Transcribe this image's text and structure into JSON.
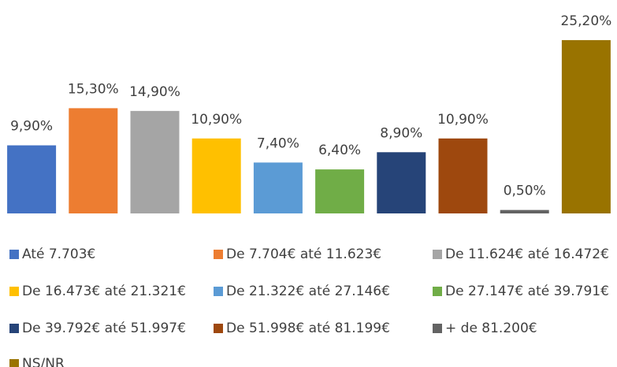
{
  "chart_data": {
    "type": "bar",
    "legend": "bottom",
    "ylim": [
      0,
      30
    ],
    "series": [
      {
        "name": "Até 7.703€",
        "color": "#4472c4",
        "values": [
          9.9
        ],
        "value_labels": [
          "9,90%"
        ]
      },
      {
        "name": "De 7.704€ até 11.623€",
        "color": "#ed7d31",
        "values": [
          15.3
        ],
        "value_labels": [
          "15,30%"
        ]
      },
      {
        "name": "De 11.624€ até 16.472€",
        "color": "#a5a5a5",
        "values": [
          14.9
        ],
        "value_labels": [
          "14,90%"
        ]
      },
      {
        "name": "De 16.473€ até 21.321€",
        "color": "#ffc000",
        "values": [
          10.9
        ],
        "value_labels": [
          "10,90%"
        ]
      },
      {
        "name": "De 21.322€ até 27.146€",
        "color": "#5b9bd5",
        "values": [
          7.4
        ],
        "value_labels": [
          "7,40%"
        ]
      },
      {
        "name": "De 27.147€ até 39.791€",
        "color": "#70ad47",
        "values": [
          6.4
        ],
        "value_labels": [
          "6,40%"
        ]
      },
      {
        "name": "De 39.792€ até 51.997€",
        "color": "#264478",
        "values": [
          8.9
        ],
        "value_labels": [
          "8,90%"
        ]
      },
      {
        "name": "De 51.998€ até 81.199€",
        "color": "#9e480e",
        "values": [
          10.9
        ],
        "value_labels": [
          "10,90%"
        ]
      },
      {
        "name": "+ de 81.200€",
        "color": "#636363",
        "values": [
          0.5
        ],
        "value_labels": [
          "0,50%"
        ]
      },
      {
        "name": "NS/NR",
        "color": "#997300",
        "values": [
          25.2
        ],
        "value_labels": [
          "25,20%"
        ]
      }
    ]
  }
}
